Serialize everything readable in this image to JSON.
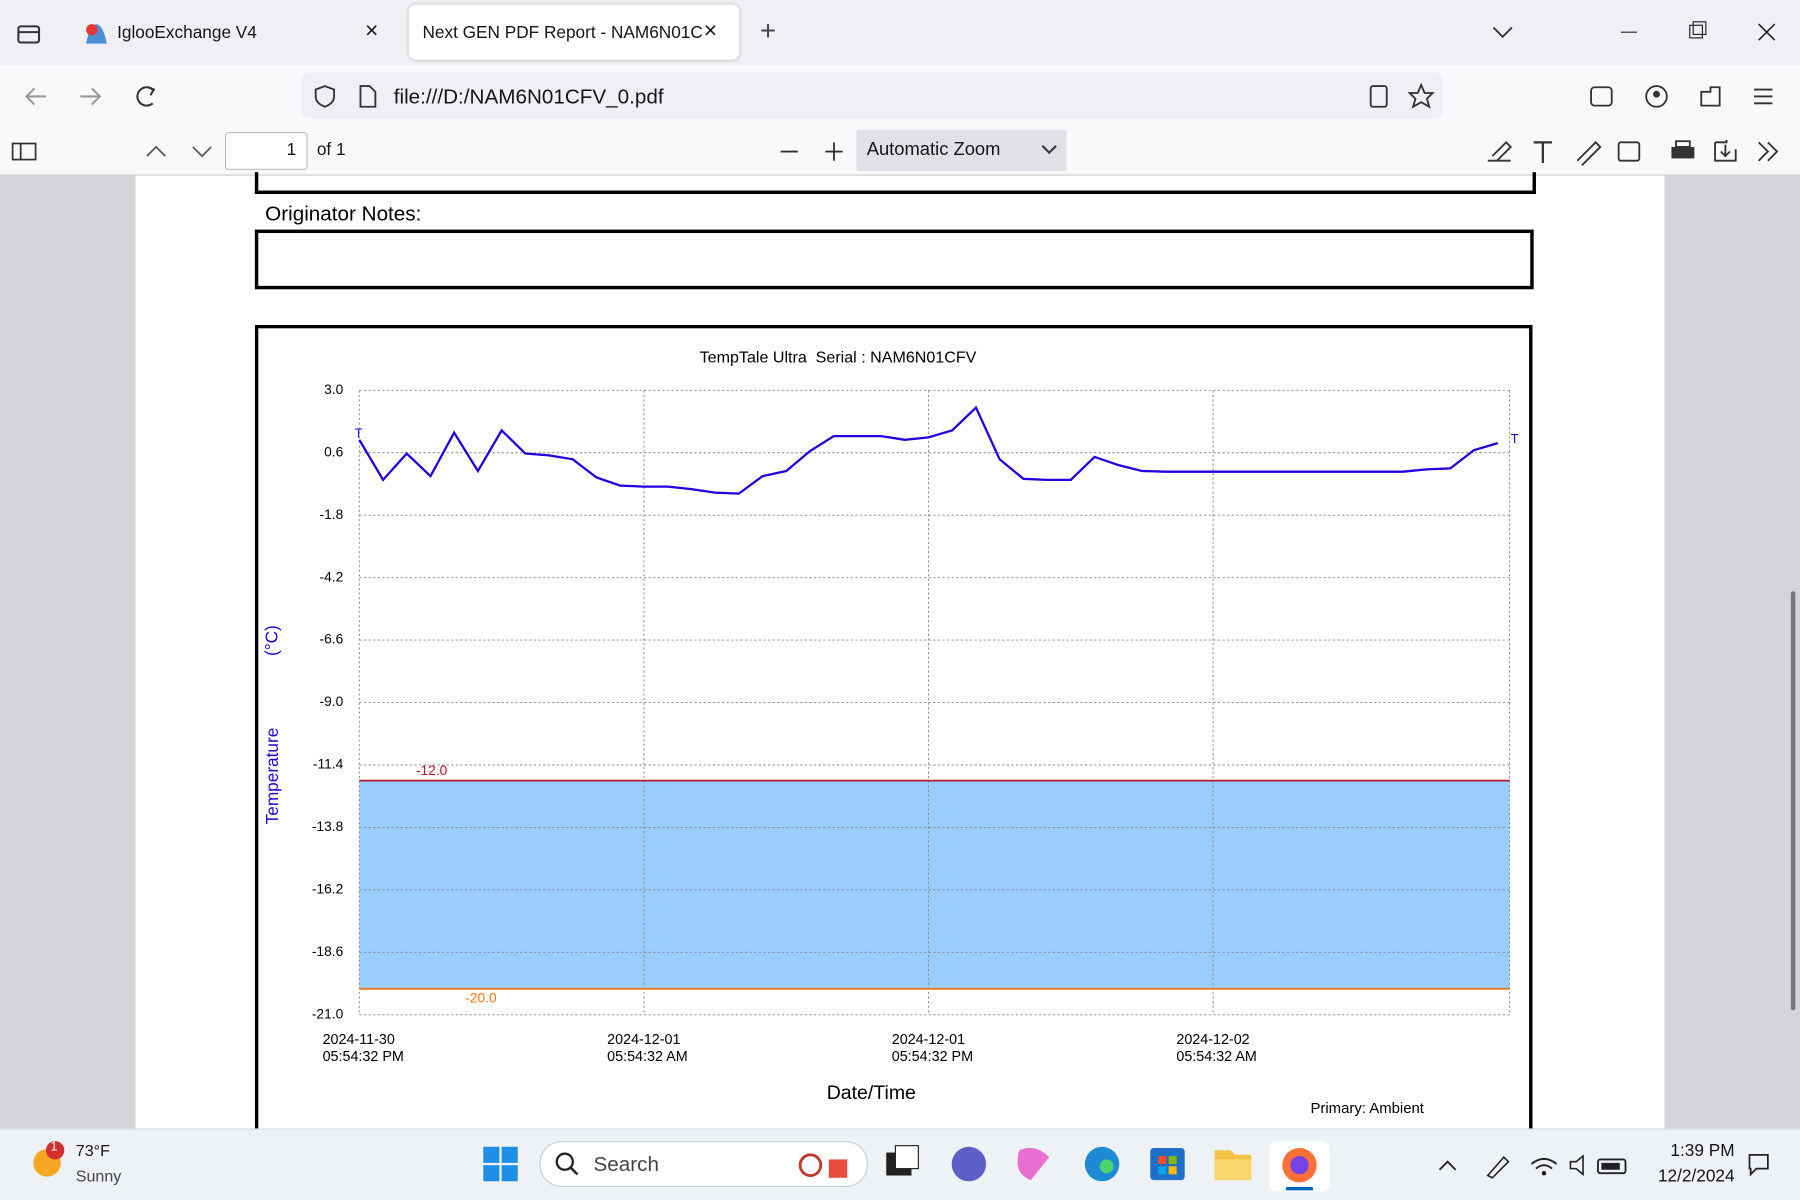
{
  "browser": {
    "tabs": [
      {
        "title": "IglooExchange V4"
      },
      {
        "title": "Next GEN PDF Report - NAM6N01C"
      }
    ],
    "url": "file:///D:/NAM6N01CFV_0.pdf"
  },
  "pdf_toolbar": {
    "page": "1",
    "page_count": "of 1",
    "zoom": "Automatic Zoom"
  },
  "document": {
    "notes_label": "Originator Notes:"
  },
  "chart_data": {
    "type": "line",
    "title": "TempTale Ultra  Serial : NAM6N01CFV",
    "y_label": "Temperature",
    "y_unit": "(°C)",
    "x_label": "Date/Time",
    "footnote": "Primary: Ambient",
    "end_marks": [
      "T",
      "T"
    ],
    "x": [
      "2024-11-30T17:54:32",
      "2024-11-30T18:54:32",
      "2024-11-30T19:54:32",
      "2024-11-30T20:54:32",
      "2024-11-30T21:54:32",
      "2024-11-30T22:54:32",
      "2024-11-30T23:54:32",
      "2024-12-01T00:54:32",
      "2024-12-01T01:54:32",
      "2024-12-01T02:54:32",
      "2024-12-01T03:54:32",
      "2024-12-01T04:54:32",
      "2024-12-01T05:54:32",
      "2024-12-01T06:54:32",
      "2024-12-01T07:54:32",
      "2024-12-01T08:54:32",
      "2024-12-01T09:54:32",
      "2024-12-01T10:54:32",
      "2024-12-01T11:54:32",
      "2024-12-01T12:54:32",
      "2024-12-01T13:54:32",
      "2024-12-01T14:54:32",
      "2024-12-01T15:54:32",
      "2024-12-01T16:54:32",
      "2024-12-01T17:54:32",
      "2024-12-01T18:54:32",
      "2024-12-01T19:54:32",
      "2024-12-01T20:54:32",
      "2024-12-01T21:54:32",
      "2024-12-01T22:54:32",
      "2024-12-01T23:54:32",
      "2024-12-02T00:54:32",
      "2024-12-02T01:54:32",
      "2024-12-02T02:54:32",
      "2024-12-02T03:54:32",
      "2024-12-02T04:54:32",
      "2024-12-02T05:54:32",
      "2024-12-02T06:54:32",
      "2024-12-02T07:54:32",
      "2024-12-02T08:54:32",
      "2024-12-02T09:54:32",
      "2024-12-02T10:54:32",
      "2024-12-02T11:54:32",
      "2024-12-02T12:54:32",
      "2024-12-02T13:54:32",
      "2024-12-02T14:54:32",
      "2024-12-02T15:54:32",
      "2024-12-02T16:54:32",
      "2024-12-02T17:54:32"
    ],
    "series": [
      {
        "name": "Ambient",
        "color": "#2200dd",
        "values": [
          1.1,
          -0.44,
          0.57,
          -0.3,
          1.37,
          -0.1,
          1.46,
          0.57,
          0.5,
          0.35,
          -0.35,
          -0.66,
          -0.7,
          -0.7,
          -0.8,
          -0.93,
          -0.97,
          -0.3,
          -0.1,
          0.66,
          1.24,
          1.24,
          1.24,
          1.1,
          1.19,
          1.46,
          2.34,
          0.35,
          -0.4,
          -0.44,
          -0.44,
          0.44,
          0.13,
          -0.1,
          -0.13,
          -0.13,
          -0.13,
          -0.13,
          -0.13,
          -0.13,
          -0.13,
          -0.13,
          -0.13,
          -0.13,
          -0.13,
          -0.04,
          0.0,
          0.7,
          0.97
        ]
      }
    ],
    "limits": {
      "values": [
        -12,
        -20
      ],
      "value_labels": [
        "-12.0",
        "-20.0"
      ],
      "colors": [
        "#b0182a",
        "#f07a1a"
      ],
      "band_color": "#99ccff"
    },
    "xlim": [
      "2024-11-30T17:54:32",
      "2024-12-02T18:24:32"
    ],
    "xticks": [
      {
        "value": "2024-11-30T17:54:32",
        "label": [
          "2024-11-30",
          "05:54:32 PM"
        ]
      },
      {
        "value": "2024-12-01T05:54:32",
        "label": [
          "2024-12-01",
          "05:54:32 AM"
        ]
      },
      {
        "value": "2024-12-01T17:54:32",
        "label": [
          "2024-12-01",
          "05:54:32 PM"
        ]
      },
      {
        "value": "2024-12-02T05:54:32",
        "label": [
          "2024-12-02",
          "05:54:32 AM"
        ]
      }
    ],
    "ylim": [
      -21,
      3
    ],
    "yticks": [
      {
        "value": 3,
        "label": "3.0"
      },
      0.6,
      -1.8,
      -4.2,
      -6.6,
      {
        "value": -9,
        "label": "-9.0"
      },
      -11.4,
      -13.8,
      -16.2,
      -18.6,
      {
        "value": -21,
        "label": "-21.0"
      }
    ],
    "grid": true
  },
  "taskbar": {
    "weather_badge": "1",
    "temperature": "73°F",
    "condition": "Sunny",
    "search": "Search",
    "time": "1:39 PM",
    "date": "12/2/2024"
  }
}
